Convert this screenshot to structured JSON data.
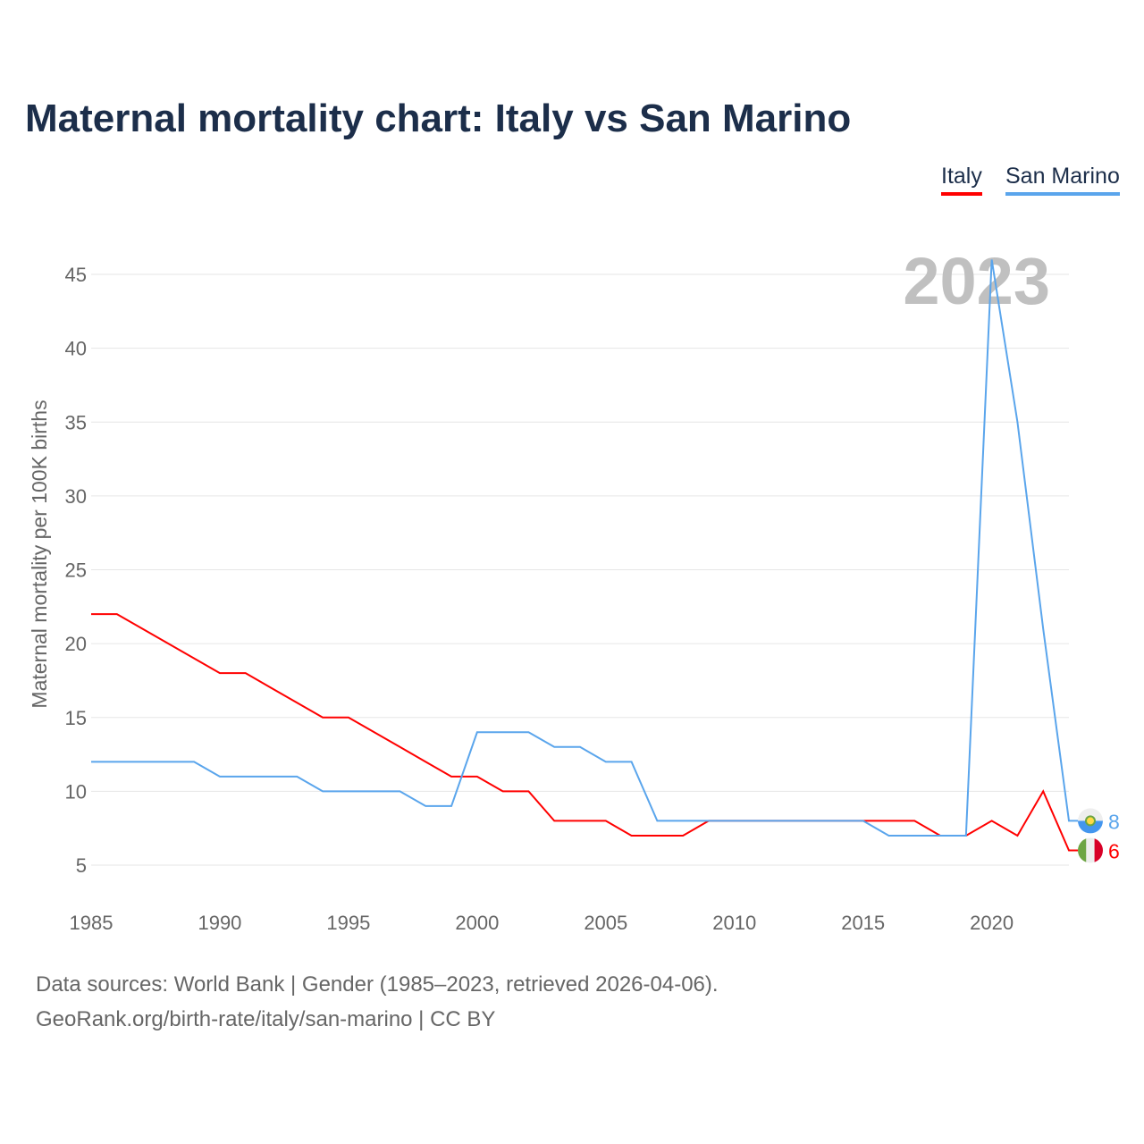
{
  "chart_data": {
    "type": "line",
    "title": "Maternal mortality chart: Italy vs San Marino",
    "xlabel": "",
    "ylabel": "Maternal mortality per 100K births",
    "x": [
      1985,
      1986,
      1987,
      1988,
      1989,
      1990,
      1991,
      1992,
      1993,
      1994,
      1995,
      1996,
      1997,
      1998,
      1999,
      2000,
      2001,
      2002,
      2003,
      2004,
      2005,
      2006,
      2007,
      2008,
      2009,
      2010,
      2011,
      2012,
      2013,
      2014,
      2015,
      2016,
      2017,
      2018,
      2019,
      2020,
      2021,
      2022,
      2023
    ],
    "series": [
      {
        "name": "Italy",
        "color": "#ff0000",
        "values": [
          22,
          22,
          21,
          20,
          19,
          18,
          18,
          17,
          16,
          15,
          15,
          14,
          13,
          12,
          11,
          11,
          10,
          10,
          8,
          8,
          8,
          7,
          7,
          7,
          8,
          8,
          8,
          8,
          8,
          8,
          8,
          8,
          8,
          7,
          7,
          8,
          7,
          10,
          6
        ]
      },
      {
        "name": "San Marino",
        "color": "#5aa5ec",
        "values": [
          12,
          12,
          12,
          12,
          12,
          11,
          11,
          11,
          11,
          10,
          10,
          10,
          10,
          9,
          9,
          14,
          14,
          14,
          13,
          13,
          12,
          12,
          8,
          8,
          8,
          8,
          8,
          8,
          8,
          8,
          8,
          7,
          7,
          7,
          7,
          46,
          35,
          21,
          8
        ]
      }
    ],
    "end_labels": [
      "6",
      "8"
    ],
    "year_watermark": "2023",
    "xticks": [
      "1985",
      "1990",
      "1995",
      "2000",
      "2005",
      "2010",
      "2015",
      "2020"
    ],
    "yticks": [
      "5",
      "10",
      "15",
      "20",
      "25",
      "30",
      "35",
      "40",
      "45"
    ],
    "xlim": [
      1985,
      2023
    ],
    "ylim": [
      5,
      45
    ],
    "grid": true,
    "legend": "top-right"
  },
  "footer": {
    "line1": "Data sources: World Bank | Gender (1985–2023, retrieved 2026-04-06).",
    "line2": "GeoRank.org/birth-rate/italy/san-marino | CC BY"
  }
}
